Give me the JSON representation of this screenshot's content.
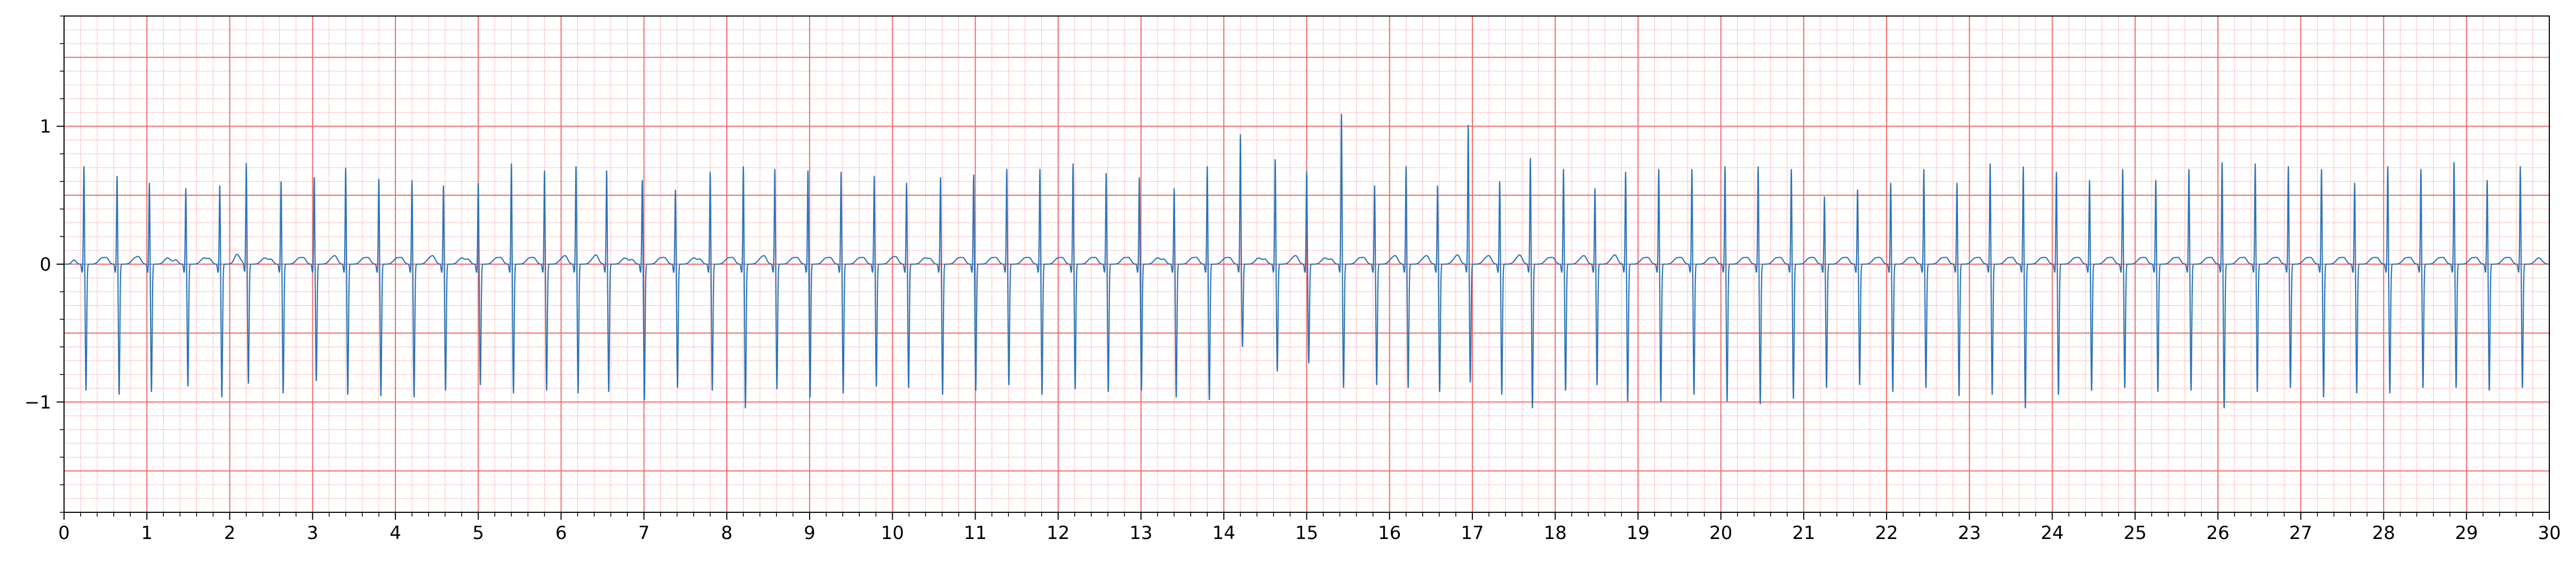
{
  "chart_data": {
    "type": "line",
    "title": "",
    "xlabel": "",
    "ylabel": "",
    "xlim": [
      0,
      30
    ],
    "ylim": [
      -1.8,
      1.8
    ],
    "grid": {
      "major_color": "#f06a6a",
      "minor_color": "#ffc4c4",
      "major_x": 1,
      "minor_x": 0.2,
      "major_y": 0.5,
      "minor_y": 0.1
    },
    "line_color": "#2b74b8",
    "x_ticks": [
      0,
      1,
      2,
      3,
      4,
      5,
      6,
      7,
      8,
      9,
      10,
      11,
      12,
      13,
      14,
      15,
      16,
      17,
      18,
      19,
      20,
      21,
      22,
      23,
      24,
      25,
      26,
      27,
      28,
      29,
      30
    ],
    "x_tick_labels": [
      "0",
      "1",
      "2",
      "3",
      "4",
      "5",
      "6",
      "7",
      "8",
      "9",
      "10",
      "11",
      "12",
      "13",
      "14",
      "15",
      "16",
      "17",
      "18",
      "19",
      "20",
      "21",
      "22",
      "23",
      "24",
      "25",
      "26",
      "27",
      "28",
      "29",
      "30"
    ],
    "y_ticks": [
      -1,
      0,
      1
    ],
    "y_tick_labels": [
      "−1",
      "0",
      "1"
    ],
    "series": [
      {
        "name": "",
        "beat_times": [
          0.24,
          0.64,
          1.03,
          1.47,
          1.88,
          2.2,
          2.62,
          3.02,
          3.4,
          3.8,
          4.2,
          4.58,
          5.0,
          5.4,
          5.8,
          6.18,
          6.55,
          6.98,
          7.38,
          7.8,
          8.2,
          8.58,
          8.98,
          9.38,
          9.78,
          10.17,
          10.58,
          10.98,
          11.38,
          11.78,
          12.18,
          12.58,
          12.98,
          13.4,
          13.8,
          14.2,
          14.62,
          15.0,
          15.42,
          15.82,
          16.2,
          16.58,
          16.95,
          17.33,
          17.7,
          18.1,
          18.48,
          18.85,
          19.25,
          19.65,
          20.05,
          20.45,
          20.85,
          21.25,
          21.65,
          22.05,
          22.45,
          22.85,
          23.25,
          23.65,
          24.05,
          24.45,
          24.85,
          25.25,
          25.65,
          26.05,
          26.45,
          26.85,
          27.25,
          27.65,
          28.05,
          28.45,
          28.85,
          29.25,
          29.65
        ],
        "r_amplitudes": [
          0.72,
          0.65,
          0.6,
          0.56,
          0.58,
          0.74,
          0.61,
          0.64,
          0.71,
          0.63,
          0.62,
          0.58,
          0.6,
          0.74,
          0.69,
          0.72,
          0.69,
          0.62,
          0.55,
          0.68,
          0.72,
          0.7,
          0.69,
          0.68,
          0.65,
          0.6,
          0.64,
          0.66,
          0.7,
          0.7,
          0.74,
          0.67,
          0.64,
          0.56,
          0.72,
          0.95,
          0.77,
          0.68,
          1.1,
          0.58,
          0.72,
          0.58,
          1.02,
          0.61,
          0.78,
          0.7,
          0.56,
          0.68,
          0.7,
          0.7,
          0.72,
          0.72,
          0.7,
          0.5,
          0.55,
          0.6,
          0.7,
          0.6,
          0.74,
          0.72,
          0.68,
          0.62,
          0.7,
          0.62,
          0.7,
          0.75,
          0.74,
          0.72,
          0.7,
          0.6,
          0.72,
          0.7,
          0.75,
          0.62,
          0.72
        ],
        "s_amplitudes": [
          -0.92,
          -0.95,
          -0.93,
          -0.89,
          -0.97,
          -0.87,
          -0.94,
          -0.85,
          -0.95,
          -0.96,
          -0.97,
          -0.92,
          -0.88,
          -0.94,
          -0.92,
          -0.94,
          -0.93,
          -0.99,
          -0.9,
          -0.92,
          -1.05,
          -0.91,
          -0.97,
          -0.94,
          -0.89,
          -0.9,
          -0.95,
          -0.92,
          -0.88,
          -0.95,
          -0.91,
          -0.93,
          -0.92,
          -0.97,
          -0.99,
          -0.6,
          -0.78,
          -0.72,
          -0.9,
          -0.88,
          -0.9,
          -0.93,
          -0.86,
          -0.95,
          -1.05,
          -0.92,
          -0.88,
          -1.0,
          -1.0,
          -0.95,
          -1.0,
          -1.02,
          -0.98,
          -0.9,
          -0.88,
          -0.93,
          -0.9,
          -0.96,
          -0.95,
          -1.05,
          -0.95,
          -0.92,
          -0.9,
          -0.93,
          -0.92,
          -1.05,
          -0.93,
          -0.9,
          -0.97,
          -0.94,
          -0.94,
          -0.9,
          -0.9,
          -0.92,
          -0.9
        ]
      }
    ]
  }
}
